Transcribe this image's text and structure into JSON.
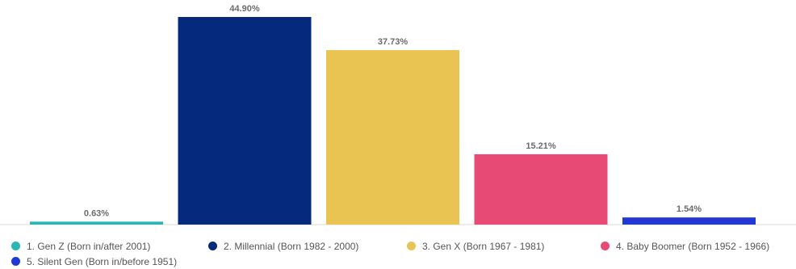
{
  "chart_data": {
    "type": "bar",
    "categories": [
      "1. Gen Z (Born in/after 2001)",
      "2. Millennial (Born 1982 - 2000)",
      "3. Gen X (Born 1967 - 1981)",
      "4. Baby Boomer (Born 1952 - 1966)",
      "5. Silent Gen (Born in/before 1951)"
    ],
    "values": [
      0.63,
      44.9,
      37.73,
      15.21,
      1.54
    ],
    "value_labels": [
      "0.63%",
      "44.90%",
      "37.73%",
      "15.21%",
      "1.54%"
    ],
    "colors": [
      "#2bb5b5",
      "#04297d",
      "#e9c452",
      "#e84a76",
      "#2238d4"
    ],
    "title": "",
    "xlabel": "",
    "ylabel": "",
    "ylim": [
      0,
      44.9
    ],
    "grid": false,
    "legend_position": "bottom"
  }
}
